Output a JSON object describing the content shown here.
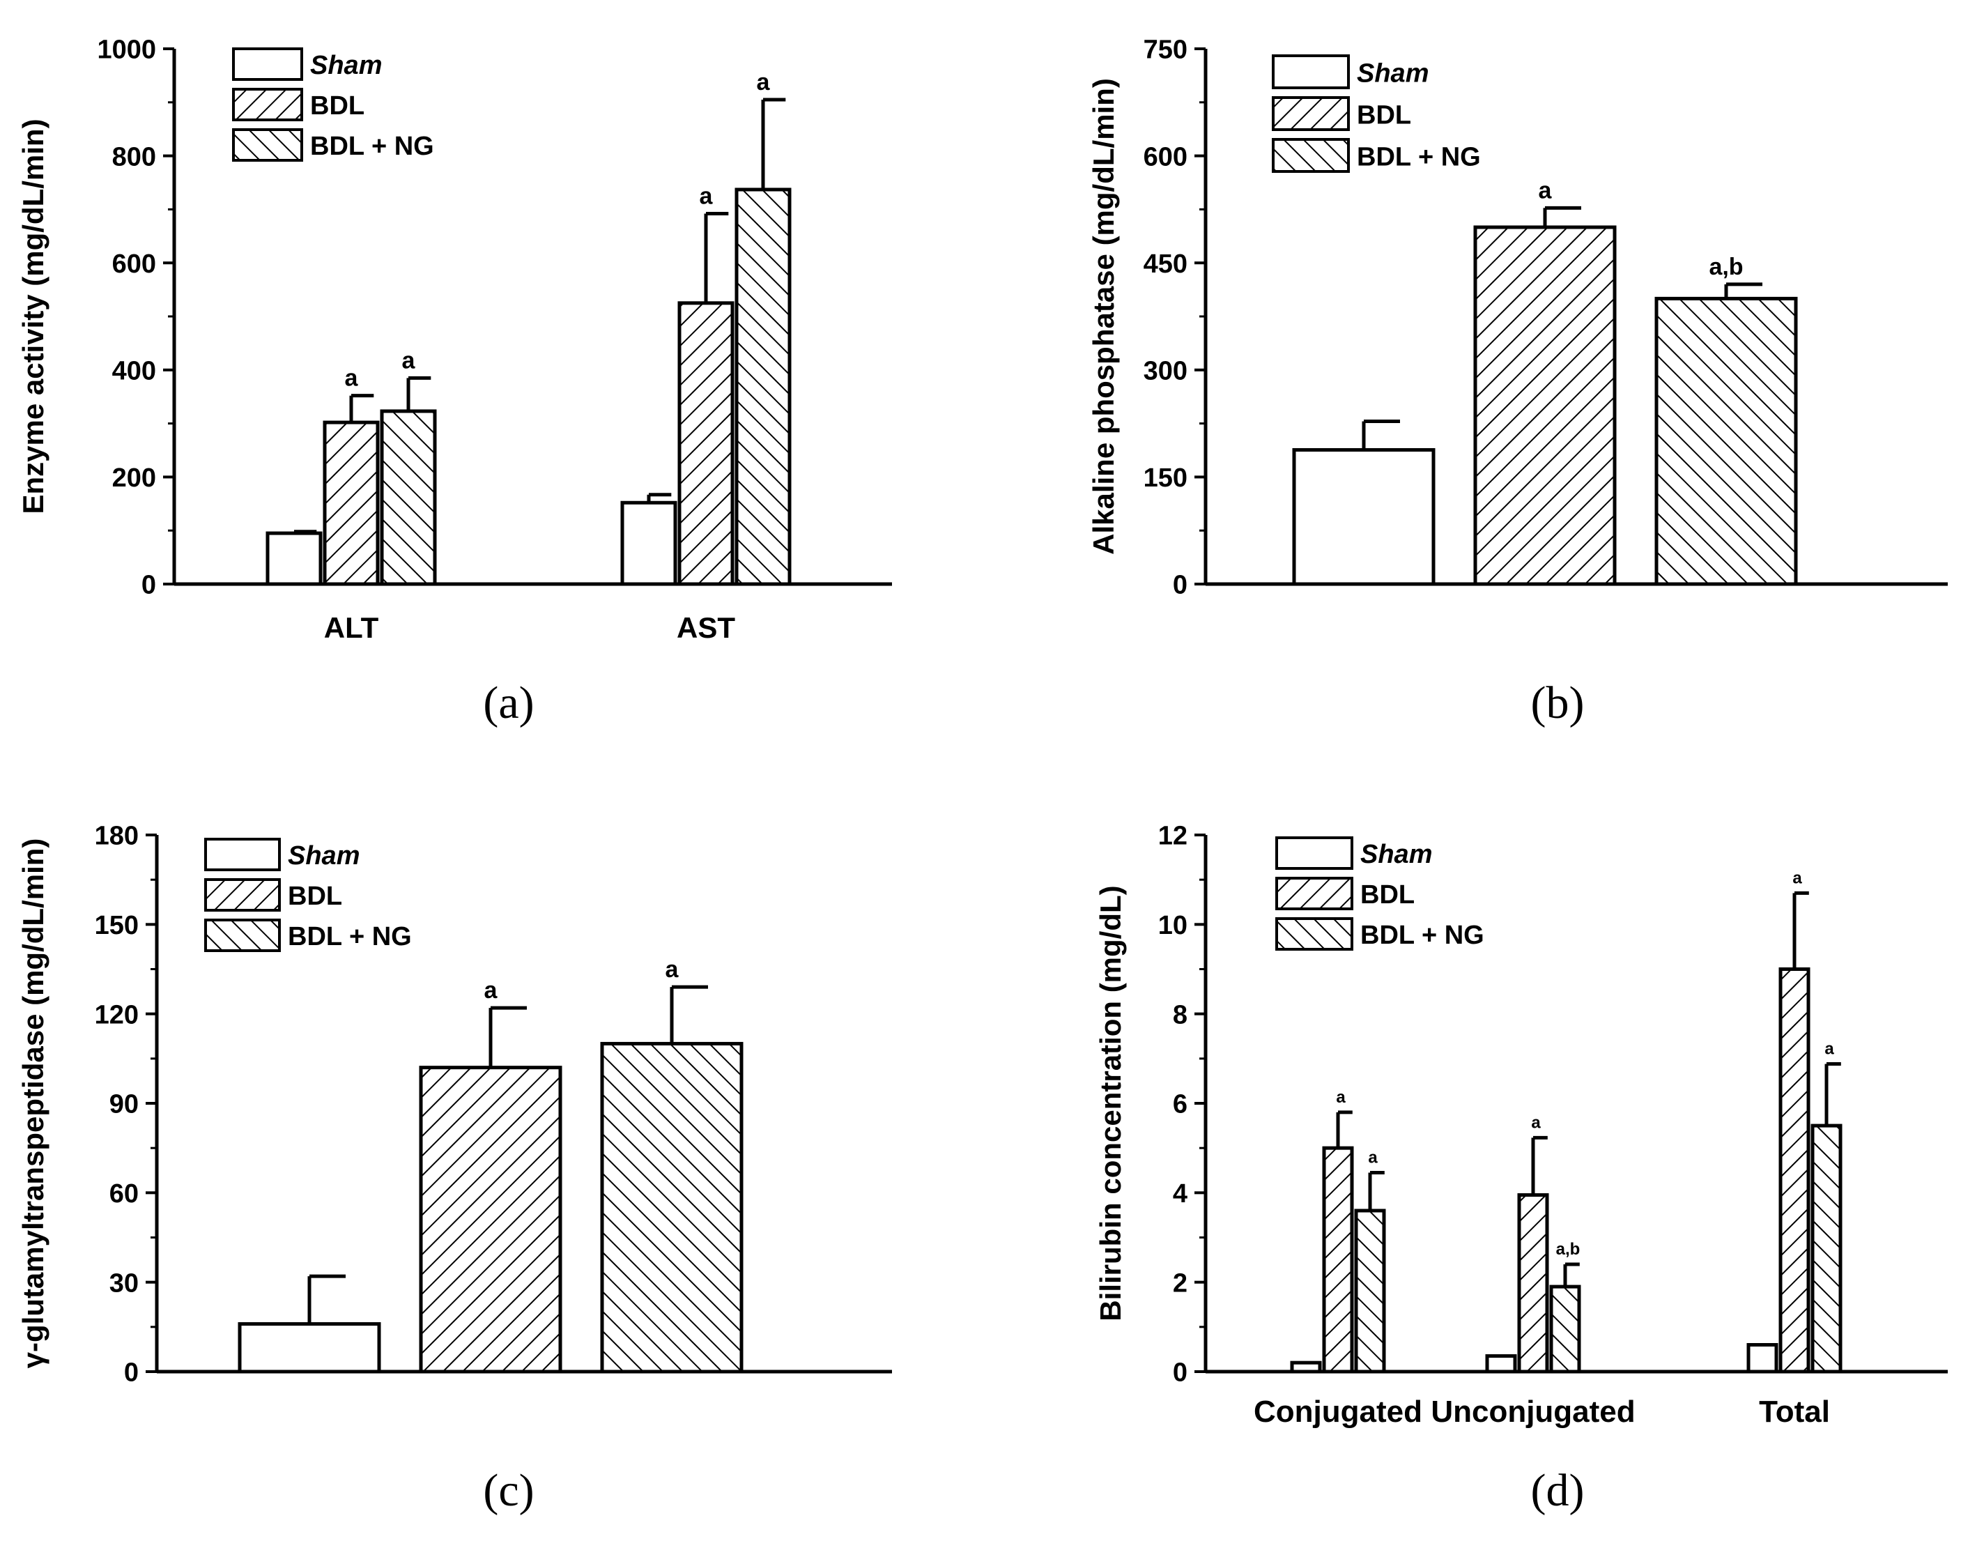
{
  "legend": {
    "items": [
      {
        "label": "Sham",
        "pattern": "none",
        "italic": true
      },
      {
        "label": "BDL",
        "pattern": "forward",
        "italic": false
      },
      {
        "label": "BDL + NG",
        "pattern": "back",
        "italic": false
      }
    ]
  },
  "chart_data": [
    {
      "id": "a",
      "type": "bar",
      "panel_label": "(a)",
      "ylabel": "Enzyme activity (mg/dL/min)",
      "xlabel": "",
      "ylim": [
        0,
        1000
      ],
      "yticks": [
        0,
        200,
        400,
        600,
        800,
        1000
      ],
      "categories": [
        "ALT",
        "AST"
      ],
      "series": [
        {
          "name": "Sham",
          "values": [
            95,
            152
          ],
          "errors": [
            3,
            15
          ],
          "annotations": [
            "",
            ""
          ]
        },
        {
          "name": "BDL",
          "values": [
            302,
            525
          ],
          "errors": [
            50,
            167
          ],
          "annotations": [
            "a",
            "a"
          ]
        },
        {
          "name": "BDL + NG",
          "values": [
            323,
            737
          ],
          "errors": [
            62,
            168
          ],
          "annotations": [
            "a",
            "a"
          ]
        }
      ]
    },
    {
      "id": "b",
      "type": "bar",
      "panel_label": "(b)",
      "ylabel": "Alkaline phosphatase (mg/dL/min)",
      "xlabel": "",
      "ylim": [
        0,
        750
      ],
      "yticks": [
        0,
        150,
        300,
        450,
        600,
        750
      ],
      "categories": [
        ""
      ],
      "series": [
        {
          "name": "Sham",
          "values": [
            188
          ],
          "errors": [
            40
          ],
          "annotations": [
            ""
          ]
        },
        {
          "name": "BDL",
          "values": [
            500
          ],
          "errors": [
            27
          ],
          "annotations": [
            "a"
          ]
        },
        {
          "name": "BDL + NG",
          "values": [
            400
          ],
          "errors": [
            20
          ],
          "annotations": [
            "a,b"
          ]
        }
      ]
    },
    {
      "id": "c",
      "type": "bar",
      "panel_label": "(c)",
      "ylabel": "γ-glutamyltranspeptidase (mg/dL/min)",
      "xlabel": "",
      "ylim": [
        0,
        180
      ],
      "yticks": [
        0,
        30,
        60,
        90,
        120,
        150,
        180
      ],
      "categories": [
        ""
      ],
      "series": [
        {
          "name": "Sham",
          "values": [
            16
          ],
          "errors": [
            16
          ],
          "annotations": [
            ""
          ]
        },
        {
          "name": "BDL",
          "values": [
            102
          ],
          "errors": [
            20
          ],
          "annotations": [
            "a"
          ]
        },
        {
          "name": "BDL + NG",
          "values": [
            110
          ],
          "errors": [
            19
          ],
          "annotations": [
            "a"
          ]
        }
      ]
    },
    {
      "id": "d",
      "type": "bar",
      "panel_label": "(d)",
      "ylabel": "Bilirubin concentration (mg/dL)",
      "xlabel": "",
      "ylim": [
        0,
        12
      ],
      "yticks": [
        0,
        2,
        4,
        6,
        8,
        10,
        12
      ],
      "categories": [
        "Conjugated",
        "Unconjugated",
        "Total"
      ],
      "series": [
        {
          "name": "Sham",
          "values": [
            0.2,
            0.35,
            0.6
          ],
          "errors": [
            0,
            0,
            0
          ],
          "annotations": [
            "",
            "",
            ""
          ]
        },
        {
          "name": "BDL",
          "values": [
            5.0,
            3.95,
            9.0
          ],
          "errors": [
            0.8,
            1.28,
            1.7
          ],
          "annotations": [
            "a",
            "a",
            "a"
          ]
        },
        {
          "name": "BDL + NG",
          "values": [
            3.6,
            1.9,
            5.5
          ],
          "errors": [
            0.85,
            0.5,
            1.38
          ],
          "annotations": [
            "a",
            "a,b",
            "a"
          ]
        }
      ]
    }
  ]
}
